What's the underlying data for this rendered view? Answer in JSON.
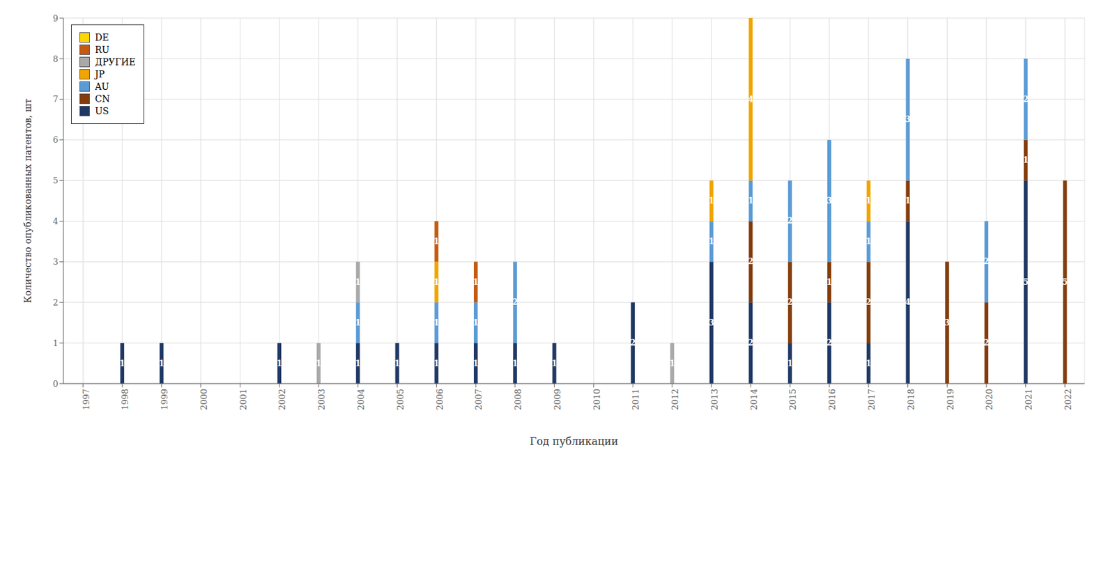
{
  "chart_data": {
    "type": "bar",
    "stacked": true,
    "data_labels": true,
    "grid": true,
    "legend": "upper left",
    "xlabel": "Год публикации",
    "ylabel": "Количество опубликованных патентов, шт",
    "categories": [
      "1997",
      "1998",
      "1999",
      "2000",
      "2001",
      "2002",
      "2003",
      "2004",
      "2005",
      "2006",
      "2007",
      "2008",
      "2009",
      "2010",
      "2011",
      "2012",
      "2013",
      "2014",
      "2015",
      "2016",
      "2017",
      "2018",
      "2019",
      "2020",
      "2021",
      "2022"
    ],
    "series": [
      {
        "name": "US",
        "color": "#1F3864",
        "values": [
          0,
          1,
          1,
          0,
          0,
          1,
          0,
          1,
          1,
          1,
          1,
          1,
          1,
          0,
          2,
          0,
          3,
          2,
          1,
          2,
          1,
          4,
          0,
          0,
          5,
          0
        ]
      },
      {
        "name": "CN",
        "color": "#843C0C",
        "values": [
          0,
          0,
          0,
          0,
          0,
          0,
          0,
          0,
          0,
          0,
          0,
          0,
          0,
          0,
          0,
          0,
          0,
          2,
          2,
          1,
          2,
          1,
          3,
          2,
          1,
          5
        ]
      },
      {
        "name": "AU",
        "color": "#5B9BD5",
        "values": [
          0,
          0,
          0,
          0,
          0,
          0,
          0,
          1,
          0,
          1,
          1,
          2,
          0,
          0,
          0,
          0,
          1,
          1,
          2,
          3,
          1,
          3,
          0,
          2,
          2,
          0
        ]
      },
      {
        "name": "JP",
        "color": "#F0A500",
        "values": [
          0,
          0,
          0,
          0,
          0,
          0,
          0,
          0,
          0,
          1,
          0,
          0,
          0,
          0,
          0,
          0,
          1,
          4,
          0,
          0,
          1,
          0,
          0,
          0,
          0,
          0
        ]
      },
      {
        "name": "ДРУГИЕ",
        "color": "#A9A9A9",
        "values": [
          0,
          0,
          0,
          0,
          0,
          0,
          1,
          1,
          0,
          0,
          0,
          0,
          0,
          0,
          0,
          1,
          0,
          0,
          0,
          0,
          0,
          0,
          0,
          0,
          0,
          0
        ]
      },
      {
        "name": "RU",
        "color": "#C55A11",
        "values": [
          0,
          0,
          0,
          0,
          0,
          0,
          0,
          0,
          0,
          1,
          1,
          0,
          0,
          0,
          0,
          0,
          0,
          0,
          0,
          0,
          0,
          0,
          0,
          0,
          0,
          0
        ]
      },
      {
        "name": "DE",
        "color": "#FFD700",
        "values": [
          0,
          0,
          0,
          0,
          0,
          0,
          0,
          0,
          0,
          0,
          0,
          0,
          0,
          0,
          0,
          0,
          0,
          0,
          0,
          0,
          0,
          0,
          0,
          0,
          0,
          0
        ]
      }
    ],
    "ylim": [
      0,
      9
    ],
    "yticks": [
      0,
      1,
      2,
      3,
      4,
      5,
      6,
      7,
      8,
      9
    ]
  }
}
